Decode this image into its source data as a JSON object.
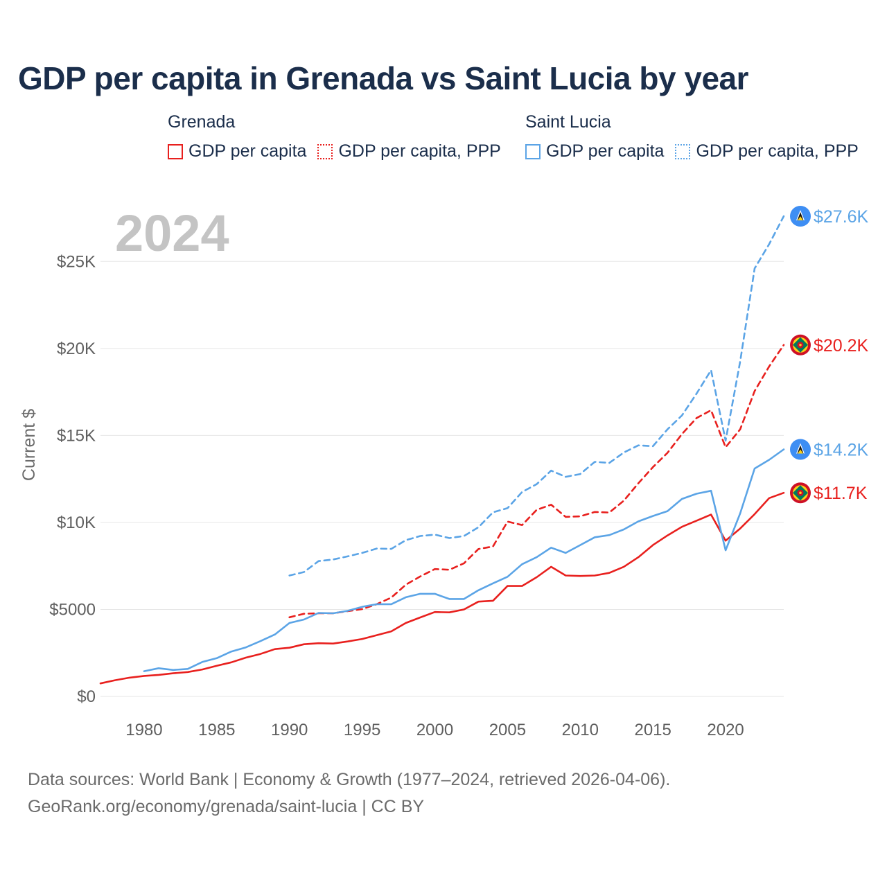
{
  "chart_data": {
    "type": "line",
    "title": "GDP per capita in Grenada vs Saint Lucia by year",
    "year_label": "2024",
    "ylabel": "Current $",
    "xlabel": "",
    "xlim": [
      1977,
      2024
    ],
    "ylim": [
      0,
      27600
    ],
    "x_ticks": [
      1980,
      1985,
      1990,
      1995,
      2000,
      2005,
      2010,
      2015,
      2020
    ],
    "y_ticks": [
      {
        "value": 0,
        "label": "$0"
      },
      {
        "value": 5000,
        "label": "$5000"
      },
      {
        "value": 10000,
        "label": "$10K"
      },
      {
        "value": 15000,
        "label": "$15K"
      },
      {
        "value": 20000,
        "label": "$20K"
      },
      {
        "value": 25000,
        "label": "$25K"
      }
    ],
    "grid": true,
    "legend": {
      "position": "top",
      "groups": [
        {
          "country": "Grenada",
          "color": "#e8201e",
          "items": [
            {
              "label": "GDP per capita",
              "style": "solid"
            },
            {
              "label": "GDP per capita, PPP",
              "style": "dotted"
            }
          ]
        },
        {
          "country": "Saint Lucia",
          "color": "#5ba4e6",
          "items": [
            {
              "label": "GDP per capita",
              "style": "solid"
            },
            {
              "label": "GDP per capita, PPP",
              "style": "dotted"
            }
          ]
        }
      ]
    },
    "series": [
      {
        "name": "Grenada GDP per capita",
        "country": "Grenada",
        "style": "solid",
        "color": "#e8201e",
        "end_label": "$11.7K",
        "x": [
          1977,
          1978,
          1979,
          1980,
          1981,
          1982,
          1983,
          1984,
          1985,
          1986,
          1987,
          1988,
          1989,
          1990,
          1991,
          1992,
          1993,
          1994,
          1995,
          1996,
          1997,
          1998,
          1999,
          2000,
          2001,
          2002,
          2003,
          2004,
          2005,
          2006,
          2007,
          2008,
          2009,
          2010,
          2011,
          2012,
          2013,
          2014,
          2015,
          2016,
          2017,
          2018,
          2019,
          2020,
          2021,
          2022,
          2023,
          2024
        ],
        "values": [
          750,
          930,
          1080,
          1180,
          1240,
          1330,
          1400,
          1550,
          1760,
          1960,
          2230,
          2440,
          2720,
          2800,
          3000,
          3060,
          3040,
          3160,
          3300,
          3520,
          3740,
          4220,
          4540,
          4850,
          4830,
          5000,
          5450,
          5500,
          6350,
          6350,
          6850,
          7450,
          6950,
          6920,
          6950,
          7100,
          7450,
          8000,
          8700,
          9250,
          9750,
          10100,
          10450,
          8950,
          9650,
          10480,
          11400,
          11700
        ]
      },
      {
        "name": "Grenada GDP per capita, PPP",
        "country": "Grenada",
        "style": "dashed",
        "color": "#e8201e",
        "end_label": "$20.2K",
        "x": [
          1990,
          1991,
          1992,
          1993,
          1994,
          1995,
          1996,
          1997,
          1998,
          1999,
          2000,
          2001,
          2002,
          2003,
          2004,
          2005,
          2006,
          2007,
          2008,
          2009,
          2010,
          2011,
          2012,
          2013,
          2014,
          2015,
          2016,
          2017,
          2018,
          2019,
          2020,
          2021,
          2022,
          2023,
          2024
        ],
        "values": [
          4550,
          4750,
          4780,
          4780,
          4900,
          5020,
          5300,
          5680,
          6420,
          6900,
          7320,
          7280,
          7650,
          8470,
          8620,
          10050,
          9850,
          10720,
          11020,
          10320,
          10350,
          10600,
          10570,
          11250,
          12250,
          13180,
          14000,
          15080,
          16000,
          16450,
          14320,
          15350,
          17550,
          18970,
          20200
        ]
      },
      {
        "name": "Saint Lucia GDP per capita",
        "country": "Saint Lucia",
        "style": "solid",
        "color": "#5ba4e6",
        "end_label": "$14.2K",
        "x": [
          1980,
          1981,
          1982,
          1983,
          1984,
          1985,
          1986,
          1987,
          1988,
          1989,
          1990,
          1991,
          1992,
          1993,
          1994,
          1995,
          1996,
          1997,
          1998,
          1999,
          2000,
          2001,
          2002,
          2003,
          2004,
          2005,
          2006,
          2007,
          2008,
          2009,
          2010,
          2011,
          2012,
          2013,
          2014,
          2015,
          2016,
          2017,
          2018,
          2019,
          2020,
          2021,
          2022,
          2023,
          2024
        ],
        "values": [
          1450,
          1620,
          1520,
          1580,
          1980,
          2200,
          2580,
          2820,
          3180,
          3560,
          4220,
          4420,
          4800,
          4780,
          4920,
          5150,
          5300,
          5300,
          5700,
          5900,
          5900,
          5600,
          5600,
          6100,
          6500,
          6880,
          7600,
          8000,
          8550,
          8250,
          8700,
          9150,
          9270,
          9600,
          10060,
          10370,
          10650,
          11350,
          11650,
          11820,
          8400,
          10520,
          13100,
          13600,
          14200
        ]
      },
      {
        "name": "Saint Lucia GDP per capita, PPP",
        "country": "Saint Lucia",
        "style": "dashed",
        "color": "#5ba4e6",
        "end_label": "$27.6K",
        "x": [
          1990,
          1991,
          1992,
          1993,
          1994,
          1995,
          1996,
          1997,
          1998,
          1999,
          2000,
          2001,
          2002,
          2003,
          2004,
          2005,
          2006,
          2007,
          2008,
          2009,
          2010,
          2011,
          2012,
          2013,
          2014,
          2015,
          2016,
          2017,
          2018,
          2019,
          2020,
          2021,
          2022,
          2023,
          2024
        ],
        "values": [
          6950,
          7150,
          7780,
          7870,
          8050,
          8250,
          8500,
          8480,
          8980,
          9220,
          9300,
          9100,
          9220,
          9720,
          10580,
          10820,
          11750,
          12200,
          12980,
          12620,
          12780,
          13480,
          13420,
          14020,
          14430,
          14380,
          15350,
          16150,
          17400,
          18750,
          14700,
          19250,
          24600,
          26000,
          27600
        ]
      }
    ]
  },
  "footer": {
    "line1": "Data sources: World Bank | Economy & Growth (1977–2024, retrieved 2026-04-06).",
    "line2": "GeoRank.org/economy/grenada/saint-lucia | CC BY"
  },
  "colors": {
    "grenada": "#e8201e",
    "saint_lucia": "#5ba4e6",
    "title": "#1b2e4b",
    "axis_text": "#5f5f5f",
    "grid": "#e6e6e6",
    "watermark": "#c4c4c4"
  },
  "icons": {
    "grenada": "grenada-flag-icon",
    "saint_lucia": "saint-lucia-flag-icon"
  }
}
